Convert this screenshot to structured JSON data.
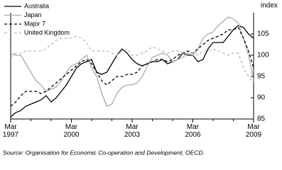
{
  "chart_data": {
    "type": "line",
    "y_label": "index",
    "source": "Source: Organisation for Economic Co-operation and Development, OECD.",
    "categories": [
      "Mar 1997",
      null,
      null,
      null,
      null,
      null,
      null,
      null,
      null,
      null,
      null,
      null,
      "Mar 2000",
      null,
      null,
      null,
      null,
      null,
      null,
      null,
      null,
      null,
      null,
      null,
      "Mar 2003",
      null,
      null,
      null,
      null,
      null,
      null,
      null,
      null,
      null,
      null,
      null,
      "Mar 2006",
      null,
      null,
      null,
      null,
      null,
      null,
      null,
      null,
      null,
      null,
      null,
      "Mar 2009"
    ],
    "ylim": [
      85,
      110
    ],
    "yticks": [
      85,
      90,
      95,
      100,
      105
    ],
    "series": [
      {
        "name": "Australia",
        "color": "#000000",
        "dash": false,
        "values": [
          85.5,
          86.5,
          87,
          88,
          88.5,
          89,
          89.5,
          90.5,
          89,
          90,
          91.5,
          93,
          95,
          97,
          98,
          98.5,
          99,
          96,
          95.5,
          96,
          98,
          100,
          101.5,
          100.5,
          99,
          98,
          97.5,
          98,
          98.5,
          98.5,
          99,
          98,
          98.5,
          99,
          100.5,
          100,
          100,
          98.5,
          99,
          101.5,
          103,
          103,
          103,
          104.5,
          106,
          107,
          106.5,
          105,
          104
        ]
      },
      {
        "name": "Japan",
        "color": "#aaaaaa",
        "dash": false,
        "values": [
          100.5,
          100,
          100,
          98,
          96,
          94,
          93,
          91.5,
          92,
          92.5,
          94,
          96,
          97.5,
          98,
          99,
          100,
          97,
          95,
          91,
          88,
          88.5,
          91,
          92.5,
          93,
          93,
          93.5,
          95,
          97.5,
          99.5,
          100,
          100.5,
          100,
          98.5,
          99,
          99.5,
          100.5,
          100,
          101.5,
          104,
          105,
          105.5,
          107,
          108,
          109,
          108.5,
          107.5,
          104,
          100,
          94
        ]
      },
      {
        "name": "Major 7",
        "color": "#000000",
        "dash": true,
        "values": [
          88,
          89,
          90.5,
          91.5,
          91.5,
          91.5,
          91,
          91.5,
          92.5,
          93.5,
          94.5,
          95.5,
          96.5,
          97.5,
          98.5,
          99,
          98,
          96,
          94,
          93,
          94,
          95,
          95,
          95.5,
          95.5,
          96,
          97.5,
          98,
          98.5,
          99,
          99,
          98.5,
          99,
          100,
          100.5,
          101,
          100.5,
          101.5,
          102.5,
          103.5,
          104,
          104.5,
          105,
          106,
          106,
          106.5,
          104,
          101,
          97
        ]
      },
      {
        "name": "United Kingdom",
        "color": "#bbbbbb",
        "dash": true,
        "values": [
          99.5,
          100.5,
          100.5,
          101,
          101,
          101,
          101,
          101.5,
          102.5,
          103.5,
          104,
          104,
          104,
          104.5,
          104,
          103,
          101,
          101,
          101,
          101,
          100.5,
          100,
          101,
          101.5,
          100,
          100,
          100.5,
          101,
          102,
          101.5,
          101,
          100.5,
          101,
          101,
          100.5,
          100.5,
          100.5,
          100,
          101,
          101,
          101.5,
          101,
          100.5,
          100,
          100.5,
          100.5,
          97,
          95,
          93.5
        ]
      }
    ]
  }
}
